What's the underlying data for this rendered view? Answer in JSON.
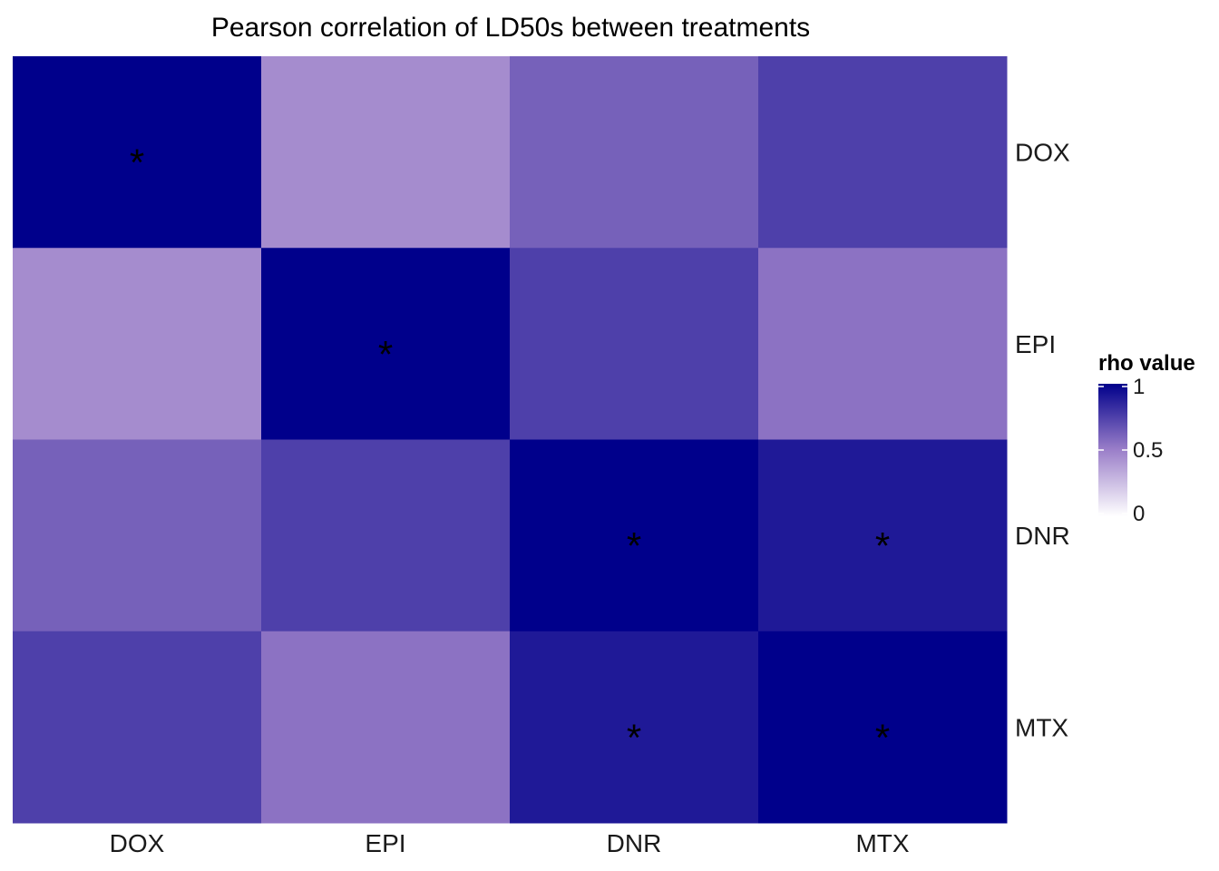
{
  "chart_data": {
    "type": "heatmap",
    "title": "Pearson correlation of LD50s between treatments",
    "x_categories": [
      "DOX",
      "EPI",
      "DNR",
      "MTX"
    ],
    "y_categories": [
      "DOX",
      "EPI",
      "DNR",
      "MTX"
    ],
    "values": [
      [
        1.0,
        0.45,
        0.62,
        0.75
      ],
      [
        0.45,
        1.0,
        0.75,
        0.55
      ],
      [
        0.62,
        0.75,
        1.0,
        0.9
      ],
      [
        0.75,
        0.55,
        0.9,
        1.0
      ]
    ],
    "significant": [
      [
        true,
        false,
        false,
        false
      ],
      [
        false,
        true,
        false,
        false
      ],
      [
        false,
        false,
        true,
        true
      ],
      [
        false,
        false,
        true,
        true
      ]
    ],
    "significance_marker": "*",
    "legend": {
      "title": "rho value",
      "range": [
        0,
        1
      ],
      "ticks": [
        "0",
        "0.5",
        "1"
      ],
      "tick_values": [
        0,
        0.5,
        1
      ],
      "low_color": "#ffffff",
      "mid_color": "#9b7fc9",
      "high_color": "#00008b",
      "placement": "right"
    },
    "x_axis_position": "bottom",
    "y_axis_position": "right",
    "grid": false
  }
}
